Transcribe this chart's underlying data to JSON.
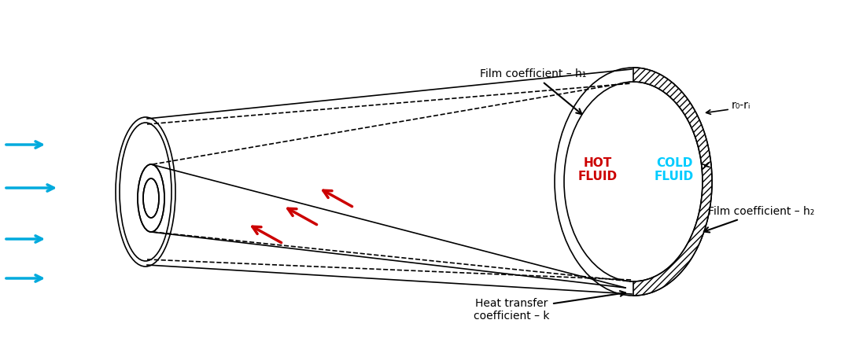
{
  "bg_color": "#ffffff",
  "line_color": "#000000",
  "red_color": "#cc0000",
  "blue_color": "#00aadd",
  "cyan_color": "#00ccff",
  "hatch_color": "#000000",
  "label_film_h1": "Film coefficient – h₁",
  "label_film_h2": "Film coefficient – h₂",
  "label_htc": "Heat transfer\ncoefficient – k",
  "label_ro_ri": "r₀-rᵢ",
  "label_hot": "HOT\nFLUID",
  "label_cold": "COLD\nFLUID",
  "figsize": [
    10.83,
    4.49
  ],
  "dpi": 100
}
